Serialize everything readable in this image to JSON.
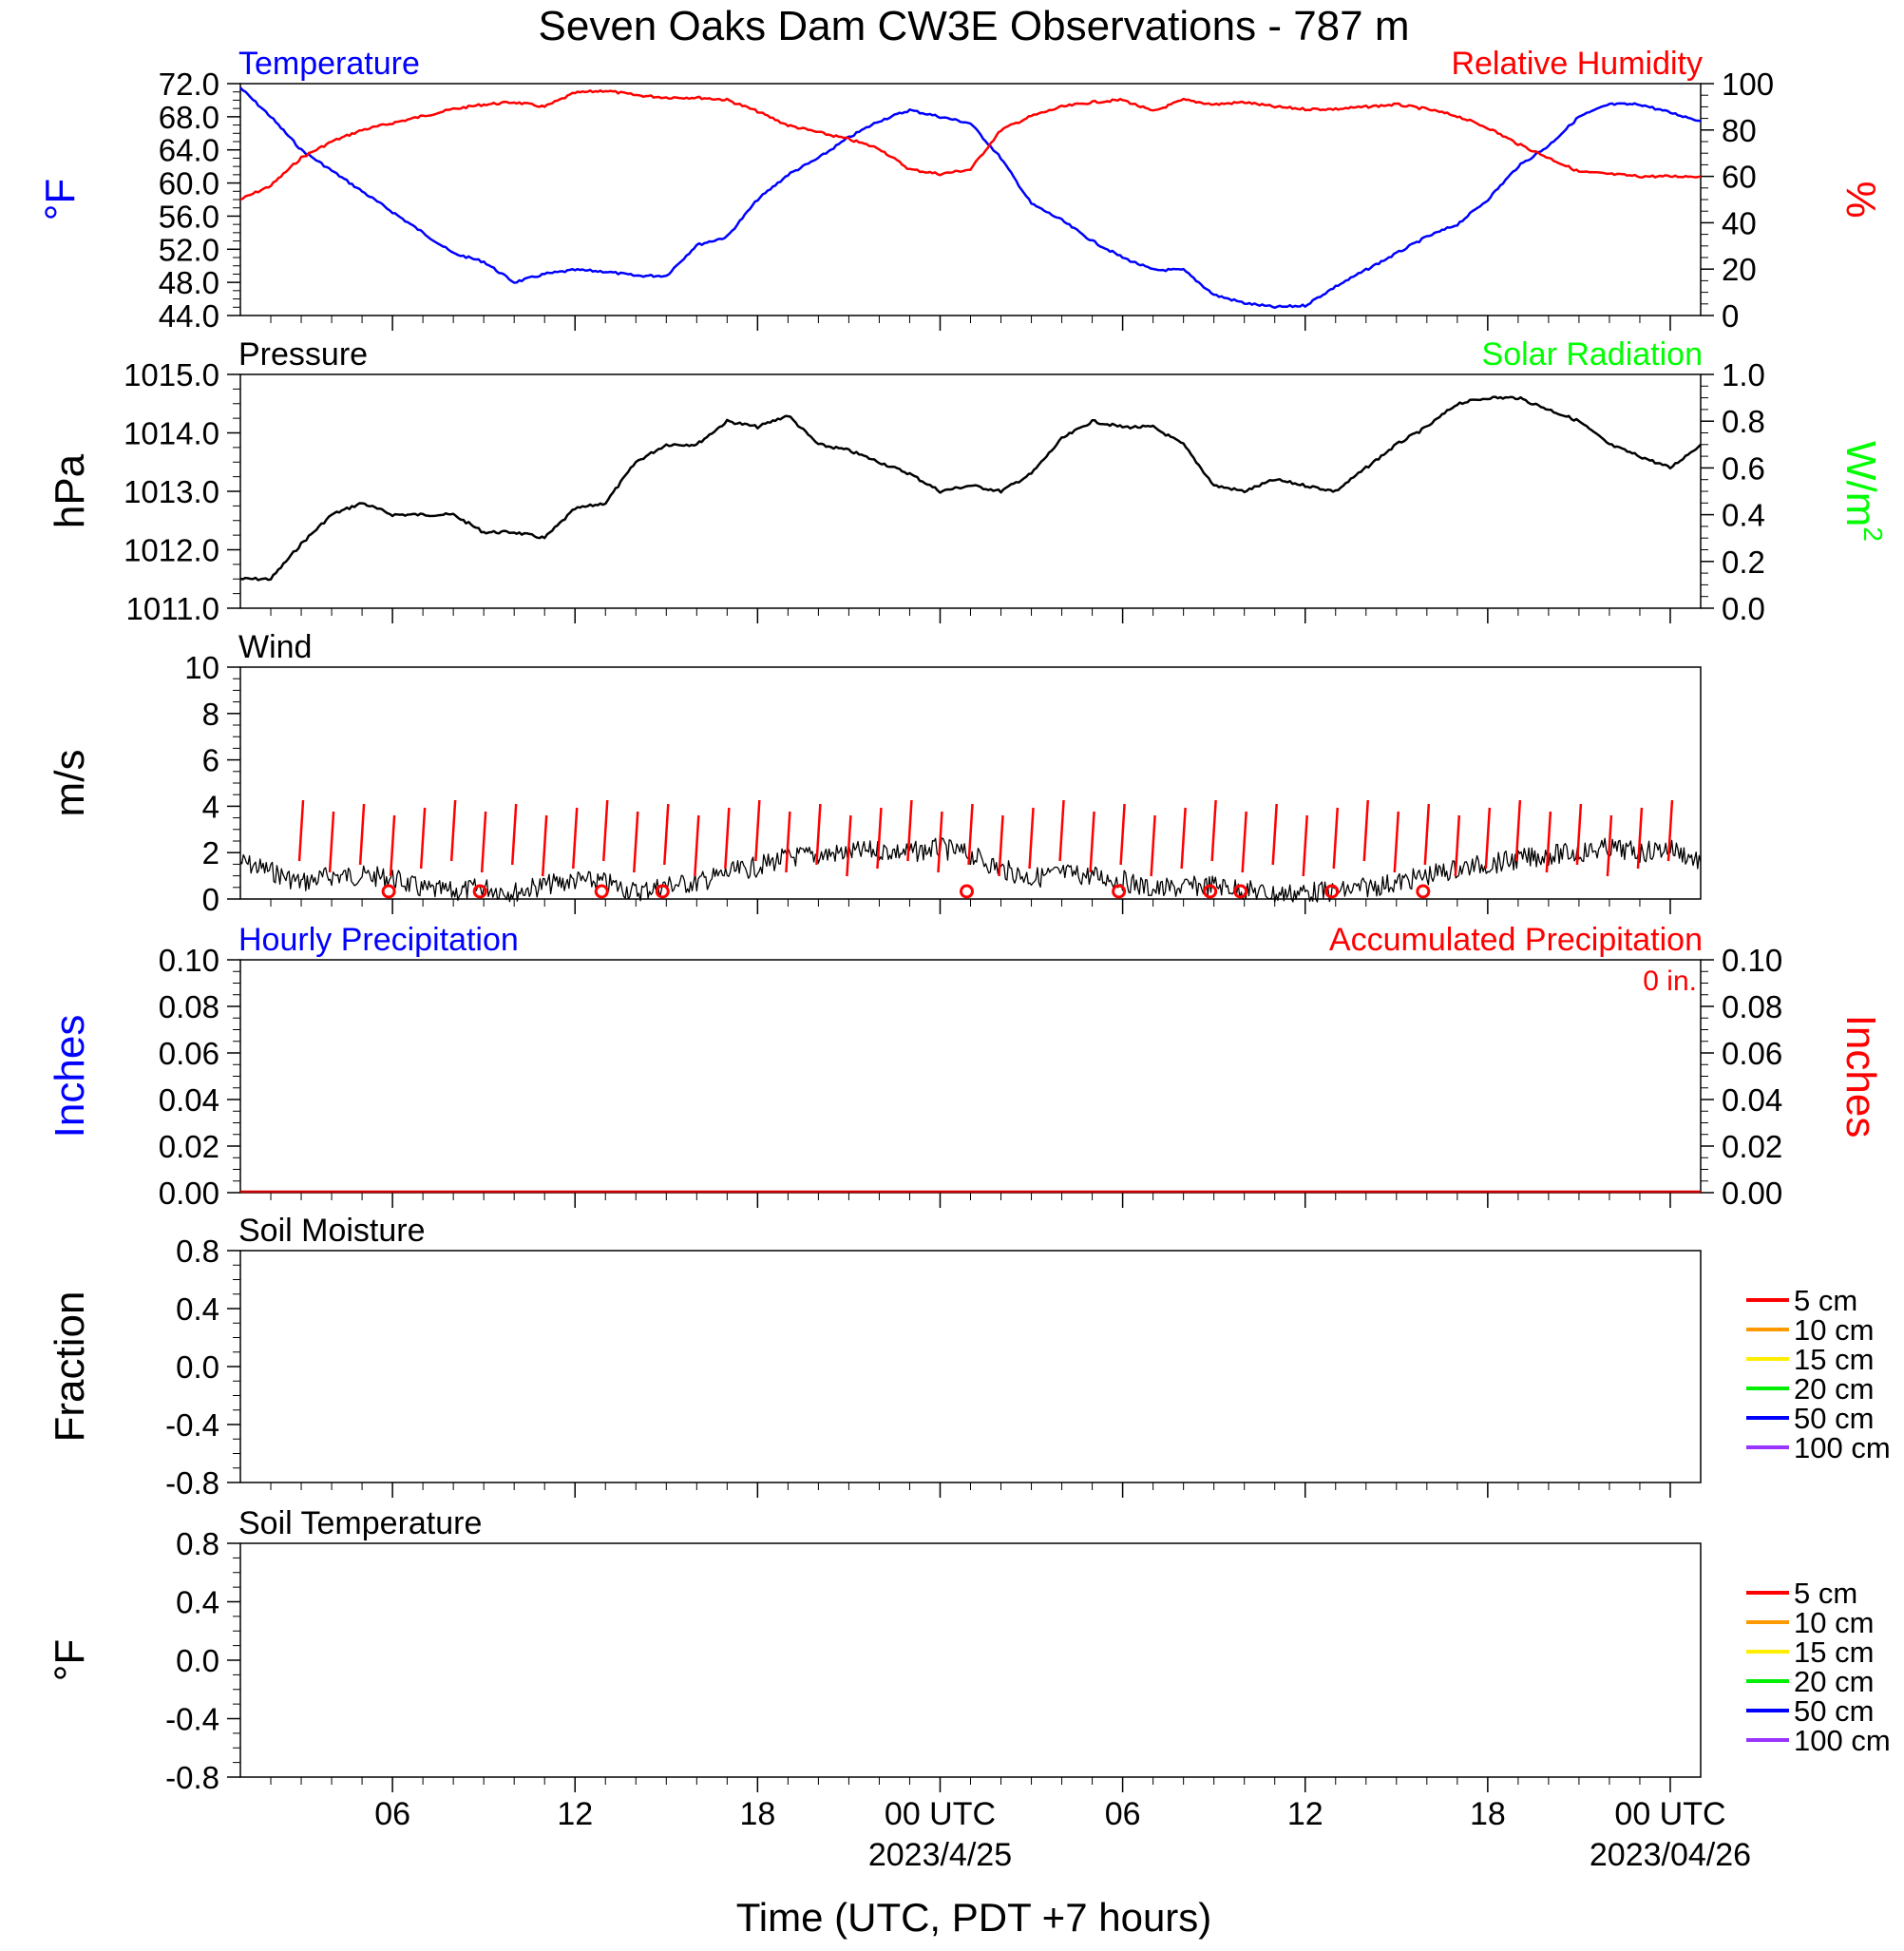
{
  "title": "Seven Oaks Dam CW3E Observations - 787 m",
  "colors": {
    "temperature": "#0000ff",
    "humidity": "#ff0000",
    "pressure": "#000000",
    "solar": "#00ff00",
    "wind": "#000000",
    "barb": "#ff0000",
    "precip": "#0000ff",
    "accum": "#ff0000",
    "axis": "#000000"
  },
  "x_axis": {
    "label": "Time (UTC, PDT +7 hours)",
    "range_hours": [
      0,
      48
    ],
    "tick_labels": [
      {
        "hour": 5,
        "text": "06"
      },
      {
        "hour": 11,
        "text": "12"
      },
      {
        "hour": 17,
        "text": "18"
      },
      {
        "hour": 23,
        "text": "00 UTC"
      },
      {
        "hour": 29,
        "text": "06"
      },
      {
        "hour": 35,
        "text": "12"
      },
      {
        "hour": 41,
        "text": "18"
      },
      {
        "hour": 47,
        "text": "00 UTC"
      }
    ],
    "date_labels": [
      {
        "hour": 23,
        "text": "2023/4/25"
      },
      {
        "hour": 47,
        "text": "2023/04/26"
      }
    ]
  },
  "chart_data": [
    {
      "panel": "temperature_humidity",
      "type": "line",
      "left_title": "Temperature",
      "right_title": "Relative Humidity",
      "ylabel_left": "°F",
      "ylabel_right": "%",
      "ylim_left": [
        44,
        72
      ],
      "ylim_right": [
        0,
        100
      ],
      "yticks_left": [
        "72.0",
        "68.0",
        "64.0",
        "60.0",
        "56.0",
        "52.0",
        "48.0",
        "44.0"
      ],
      "yticks_right": [
        "100",
        "80",
        "60",
        "40",
        "20",
        "0"
      ],
      "hours": [
        0,
        1,
        2,
        3,
        4,
        5,
        6,
        7,
        8,
        9,
        10,
        11,
        12,
        13,
        14,
        15,
        16,
        17,
        18,
        19,
        20,
        21,
        22,
        23,
        24,
        25,
        26,
        27,
        28,
        29,
        30,
        31,
        32,
        33,
        34,
        35,
        36,
        37,
        38,
        39,
        40,
        41,
        42,
        43,
        44,
        45,
        46,
        47,
        48
      ],
      "series": [
        {
          "name": "Temperature",
          "axis": "left",
          "values": [
            71.5,
            68,
            64,
            61.5,
            59,
            56.5,
            54,
            51.5,
            50.5,
            48,
            49,
            49.5,
            49.3,
            48.8,
            48.8,
            52.5,
            53.5,
            58,
            61,
            63,
            65.5,
            67.5,
            68.8,
            68,
            67.2,
            63,
            57.5,
            55.5,
            53,
            51,
            49.5,
            49.5,
            46.5,
            45.5,
            45,
            45.2,
            47.5,
            49.5,
            51.5,
            53.5,
            55,
            58,
            62,
            64.5,
            68,
            69.5,
            69.5,
            68.5,
            67.5
          ]
        },
        {
          "name": "Relative Humidity",
          "axis": "right",
          "values": [
            50,
            56,
            68,
            75,
            80,
            83,
            86,
            89,
            91,
            92,
            90,
            96,
            97,
            95,
            94,
            94,
            93,
            88,
            82,
            79,
            76,
            72,
            63,
            61,
            63,
            80,
            86,
            90,
            92,
            93,
            88,
            93,
            91,
            92,
            90,
            89,
            89,
            90,
            91,
            89,
            86,
            81,
            74,
            68,
            62,
            61,
            60,
            60,
            60
          ]
        }
      ]
    },
    {
      "panel": "pressure_solar",
      "type": "line",
      "left_title": "Pressure",
      "right_title": "Solar Radiation",
      "ylabel_left": "hPa",
      "ylabel_right": "W/m",
      "ylabel_right_sup": "2",
      "ylim_left": [
        1011.0,
        1015.0
      ],
      "ylim_right": [
        0.0,
        1.0
      ],
      "yticks_left": [
        "1015.0",
        "1014.0",
        "1013.0",
        "1012.0",
        "1011.0"
      ],
      "yticks_right": [
        "1.0",
        "0.8",
        "0.6",
        "0.4",
        "0.2",
        "0.0"
      ],
      "hours": [
        0,
        1,
        2,
        3,
        4,
        5,
        6,
        7,
        8,
        9,
        10,
        11,
        12,
        13,
        14,
        15,
        16,
        17,
        18,
        19,
        20,
        21,
        22,
        23,
        24,
        25,
        26,
        27,
        28,
        29,
        30,
        31,
        32,
        33,
        34,
        35,
        36,
        37,
        38,
        39,
        40,
        41,
        42,
        43,
        44,
        45,
        46,
        47,
        48
      ],
      "series": [
        {
          "name": "Pressure",
          "axis": "left",
          "values": [
            1011.5,
            1011.5,
            1012.1,
            1012.6,
            1012.8,
            1012.6,
            1012.6,
            1012.6,
            1012.3,
            1012.3,
            1012.2,
            1012.7,
            1012.8,
            1013.5,
            1013.8,
            1013.8,
            1014.2,
            1014.1,
            1014.3,
            1013.8,
            1013.7,
            1013.5,
            1013.3,
            1013.0,
            1013.1,
            1013.0,
            1013.3,
            1013.9,
            1014.2,
            1014.1,
            1014.1,
            1013.8,
            1013.1,
            1013.0,
            1013.2,
            1013.1,
            1013.0,
            1013.4,
            1013.8,
            1014.1,
            1014.5,
            1014.6,
            1014.6,
            1014.4,
            1014.2,
            1013.8,
            1013.6,
            1013.4,
            1013.8
          ]
        }
      ]
    },
    {
      "panel": "wind",
      "type": "line",
      "left_title": "Wind",
      "ylabel_left": "m/s",
      "ylim_left": [
        0,
        10
      ],
      "yticks_left": [
        "10",
        "8",
        "6",
        "4",
        "2",
        "0"
      ],
      "hours": [
        0,
        1,
        2,
        3,
        4,
        5,
        6,
        7,
        8,
        9,
        10,
        11,
        12,
        13,
        14,
        15,
        16,
        17,
        18,
        19,
        20,
        21,
        22,
        23,
        24,
        25,
        26,
        27,
        28,
        29,
        30,
        31,
        32,
        33,
        34,
        35,
        36,
        37,
        38,
        39,
        40,
        41,
        42,
        43,
        44,
        45,
        46,
        47,
        48
      ],
      "series": [
        {
          "name": "Wind speed",
          "axis": "left",
          "values": [
            1.6,
            1.2,
            0.7,
            1.0,
            1.0,
            0.9,
            0.4,
            0.3,
            0.5,
            0.3,
            0.6,
            0.8,
            0.7,
            0.3,
            0.6,
            0.7,
            1.1,
            1.4,
            1.8,
            1.9,
            2.0,
            2.1,
            2.0,
            2.2,
            1.9,
            1.3,
            0.9,
            1.1,
            1.0,
            0.8,
            0.4,
            0.5,
            0.6,
            0.4,
            0.2,
            0.3,
            0.3,
            0.5,
            0.7,
            1.0,
            1.3,
            1.5,
            1.7,
            1.9,
            2.0,
            2.2,
            2.0,
            2.2,
            1.6
          ]
        }
      ],
      "calm_circles_hours": [
        5,
        8,
        12,
        14,
        24,
        29,
        32,
        33,
        36,
        39
      ],
      "barb_hours": [
        2,
        3,
        4,
        5,
        6,
        7,
        8,
        9,
        10,
        11,
        12,
        13,
        14,
        15,
        16,
        17,
        18,
        19,
        20,
        21,
        22,
        23,
        24,
        25,
        26,
        27,
        28,
        29,
        30,
        31,
        32,
        33,
        34,
        35,
        36,
        37,
        38,
        39,
        40,
        41,
        42,
        43,
        44,
        45,
        46,
        47
      ]
    },
    {
      "panel": "precipitation",
      "type": "bar",
      "left_title": "Hourly Precipitation",
      "right_title": "Accumulated Precipitation",
      "accumulated_label": "0 in.",
      "ylabel_left": "Inches",
      "ylabel_right": "Inches",
      "ylim_left": [
        0.0,
        0.1
      ],
      "ylim_right": [
        0.0,
        0.1
      ],
      "yticks_left": [
        "0.10",
        "0.08",
        "0.06",
        "0.04",
        "0.02",
        "0.00"
      ],
      "yticks_right": [
        "0.10",
        "0.08",
        "0.06",
        "0.04",
        "0.02",
        "0.00"
      ],
      "series": [
        {
          "name": "Hourly Precipitation",
          "axis": "left",
          "values": [
            0
          ]
        },
        {
          "name": "Accumulated Precipitation",
          "axis": "right",
          "values": [
            0
          ]
        }
      ]
    },
    {
      "panel": "soil_moisture",
      "type": "line",
      "left_title": "Soil Moisture",
      "ylabel_left": "Fraction",
      "ylim_left": [
        -1.0,
        1.0
      ],
      "yticks_left": [
        "0.8",
        "0.4",
        "0.0",
        "-0.4",
        "-0.8"
      ],
      "legend": [
        {
          "label": "5 cm",
          "color": "#ff0000"
        },
        {
          "label": "10 cm",
          "color": "#ff9900"
        },
        {
          "label": "15 cm",
          "color": "#ffee00"
        },
        {
          "label": "20 cm",
          "color": "#00ee00"
        },
        {
          "label": "50 cm",
          "color": "#0000ff"
        },
        {
          "label": "100 cm",
          "color": "#9933ff"
        }
      ],
      "series": []
    },
    {
      "panel": "soil_temperature",
      "type": "line",
      "left_title": "Soil Temperature",
      "ylabel_left": "°F",
      "ylim_left": [
        -1.0,
        1.0
      ],
      "yticks_left": [
        "0.8",
        "0.4",
        "0.0",
        "-0.4",
        "-0.8"
      ],
      "legend": [
        {
          "label": "5 cm",
          "color": "#ff0000"
        },
        {
          "label": "10 cm",
          "color": "#ff9900"
        },
        {
          "label": "15 cm",
          "color": "#ffee00"
        },
        {
          "label": "20 cm",
          "color": "#00ee00"
        },
        {
          "label": "50 cm",
          "color": "#0000ff"
        },
        {
          "label": "100 cm",
          "color": "#9933ff"
        }
      ],
      "series": []
    }
  ]
}
